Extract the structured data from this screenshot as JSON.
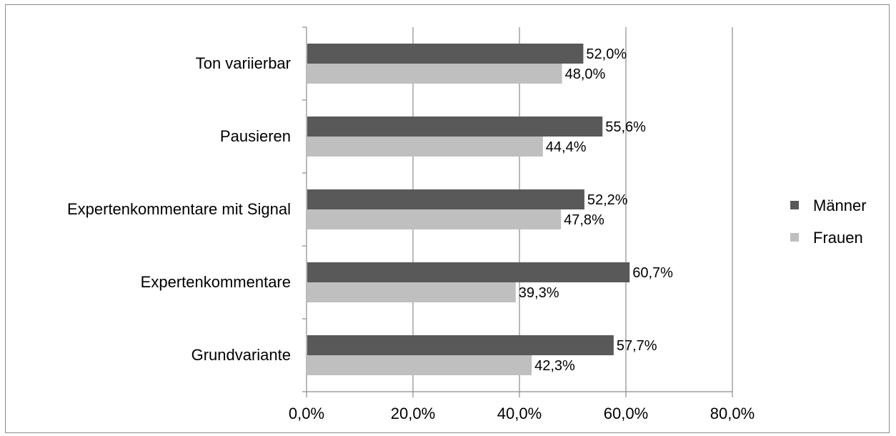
{
  "chart_data": {
    "type": "bar",
    "orientation": "horizontal",
    "categories": [
      "Ton variierbar",
      "Pausieren",
      "Expertenkommentare mit Signal",
      "Expertenkommentare",
      "Grundvariante"
    ],
    "series": [
      {
        "name": "Männer",
        "color": "#595959",
        "values": [
          52.0,
          55.6,
          52.2,
          60.7,
          57.7
        ],
        "labels": [
          "52,0%",
          "55,6%",
          "52,2%",
          "60,7%",
          "57,7%"
        ]
      },
      {
        "name": "Frauen",
        "color": "#bfbfbf",
        "values": [
          48.0,
          44.4,
          47.8,
          39.3,
          42.3
        ],
        "labels": [
          "48,0%",
          "44,4%",
          "47,8%",
          "39,3%",
          "42,3%"
        ]
      }
    ],
    "xlim": [
      0,
      80
    ],
    "xticks": [
      0,
      20,
      40,
      60,
      80
    ],
    "xtick_labels": [
      "0,0%",
      "20,0%",
      "40,0%",
      "60,0%",
      "80,0%"
    ],
    "grid": true,
    "legend_position": "right",
    "title": "",
    "xlabel": "",
    "ylabel": ""
  }
}
